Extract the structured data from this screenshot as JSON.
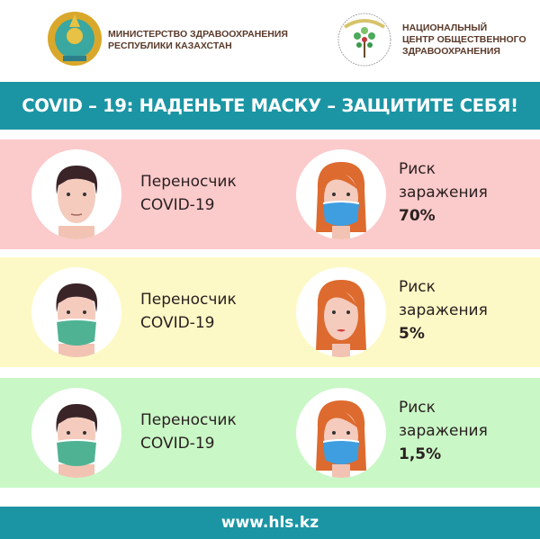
{
  "header": {
    "ministry": {
      "line1": "МИНИСТЕРСТВО ЗДРАВООХРАНЕНИЯ",
      "line2": "РЕСПУБЛИКИ КАЗАХСТАН",
      "emblem_icon": "kazakhstan-emblem"
    },
    "center": {
      "line1": "НАЦИОНАЛЬНЫЙ",
      "line2": "ЦЕНТР ОБЩЕСТВЕННОГО",
      "line3": "ЗДРАВООХРАНЕНИЯ",
      "logo_icon": "tree-logo"
    }
  },
  "banner": {
    "title": "COVID – 19: НАДЕНЬТЕ МАСКУ – ЗАЩИТИТЕ СЕБЯ!",
    "color": "#1b95a4"
  },
  "rows": [
    {
      "bg": "#fbcacb",
      "carrier_mask": false,
      "recipient_mask": true,
      "carrier_label1": "Переносчик",
      "carrier_label2": "COVID-19",
      "risk_label1": "Риск",
      "risk_label2": "заражения",
      "risk_value": "70%"
    },
    {
      "bg": "#fdf9c6",
      "carrier_mask": true,
      "recipient_mask": false,
      "carrier_label1": "Переносчик",
      "carrier_label2": "COVID-19",
      "risk_label1": "Риск",
      "risk_label2": "заражения",
      "risk_value": "5%"
    },
    {
      "bg": "#c9f7c6",
      "carrier_mask": true,
      "recipient_mask": true,
      "carrier_label1": "Переносчик",
      "carrier_label2": "COVID-19",
      "risk_label1": "Риск",
      "risk_label2": "заражения",
      "risk_value": "1,5%"
    }
  ],
  "footer": {
    "url": "www.hls.kz"
  }
}
